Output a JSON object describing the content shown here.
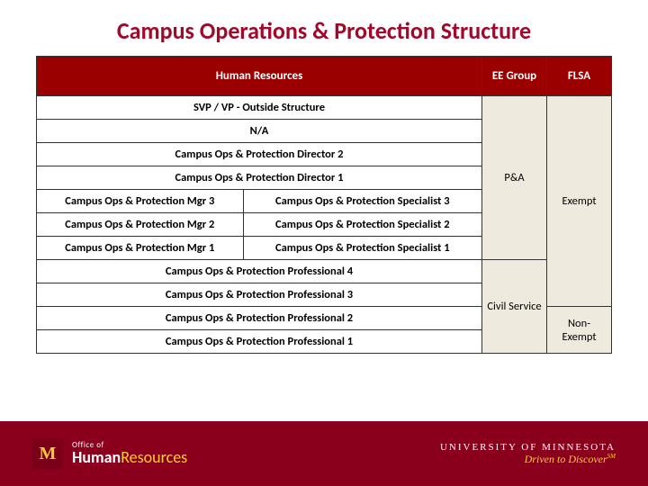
{
  "colors": {
    "maroon": "#9b0000",
    "title": "#a3082a",
    "cream": "#eeeadd",
    "gold": "#ffcc33",
    "footer": "#8a001c",
    "white": "#ffffff",
    "border": "#333333"
  },
  "title": "Campus Operations & Protection Structure",
  "table": {
    "headers": {
      "hr": "Human Resources",
      "ee": "EE Group",
      "flsa": "FLSA"
    },
    "hr_rows": [
      {
        "span": 2,
        "cells": [
          "SVP / VP - Outside Structure"
        ]
      },
      {
        "span": 2,
        "cells": [
          "N/A"
        ]
      },
      {
        "span": 2,
        "cells": [
          "Campus Ops & Protection Director 2"
        ]
      },
      {
        "span": 2,
        "cells": [
          "Campus Ops & Protection Director 1"
        ]
      },
      {
        "span": 1,
        "cells": [
          "Campus Ops & Protection Mgr 3",
          "Campus Ops & Protection Specialist 3"
        ]
      },
      {
        "span": 1,
        "cells": [
          "Campus Ops & Protection Mgr 2",
          "Campus Ops & Protection Specialist 2"
        ]
      },
      {
        "span": 1,
        "cells": [
          "Campus Ops & Protection Mgr 1",
          "Campus Ops & Protection Specialist 1"
        ]
      },
      {
        "span": 2,
        "cells": [
          "Campus Ops & Protection Professional 4"
        ]
      },
      {
        "span": 2,
        "cells": [
          "Campus Ops & Protection Professional 3"
        ]
      },
      {
        "span": 2,
        "cells": [
          "Campus Ops & Protection Professional 2"
        ]
      },
      {
        "span": 2,
        "cells": [
          "Campus Ops & Protection Professional 1"
        ]
      }
    ],
    "ee_groups": [
      {
        "label": "P&A",
        "rowspan": 7
      },
      {
        "label": "Civil Service",
        "rowspan": 4
      }
    ],
    "flsa": [
      {
        "label": "Exempt",
        "rowspan": 9
      },
      {
        "label": "Non-Exempt",
        "rowspan": 2
      }
    ]
  },
  "footer": {
    "m": "M",
    "office_of": "Office of",
    "human": "Human",
    "resources": "Resources",
    "university": "UNIVERSITY OF MINNESOTA",
    "tagline": "Driven to Discover",
    "sm": "SM"
  },
  "typography": {
    "title_fontsize": 26,
    "header_fontsize": 13,
    "cell_fontsize": 12.5,
    "title_weight": "bold"
  }
}
